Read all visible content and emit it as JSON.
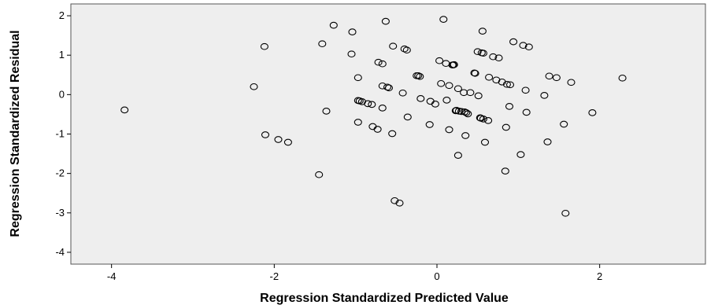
{
  "chart_data": {
    "type": "scatter",
    "title": "",
    "xlabel": "Regression Standardized Predicted Value",
    "ylabel": "Regression Standardized Residual",
    "xlim": [
      -4.5,
      3.3
    ],
    "ylim": [
      -4.3,
      2.3
    ],
    "xticks": [
      -4,
      -2,
      0,
      2
    ],
    "yticks": [
      -4,
      -3,
      -2,
      -1,
      0,
      1,
      2
    ],
    "grid": false,
    "marker": "open-circle",
    "colors": {
      "plot_background": "#eeeeee",
      "marker_stroke": "#000000"
    },
    "points": [
      [
        -3.84,
        -0.39
      ],
      [
        -2.25,
        0.2
      ],
      [
        -2.12,
        1.22
      ],
      [
        -2.11,
        -1.02
      ],
      [
        -1.95,
        -1.14
      ],
      [
        -1.83,
        -1.21
      ],
      [
        -1.45,
        -2.03
      ],
      [
        -1.41,
        1.29
      ],
      [
        -1.36,
        -0.42
      ],
      [
        -1.27,
        1.76
      ],
      [
        -1.05,
        1.03
      ],
      [
        -1.04,
        1.59
      ],
      [
        -0.97,
        0.43
      ],
      [
        -0.97,
        -0.7
      ],
      [
        -0.97,
        -0.15
      ],
      [
        -0.95,
        -0.16
      ],
      [
        -0.92,
        -0.18
      ],
      [
        -0.85,
        -0.23
      ],
      [
        -0.8,
        -0.25
      ],
      [
        -0.79,
        -0.81
      ],
      [
        -0.73,
        -0.88
      ],
      [
        -0.72,
        0.82
      ],
      [
        -0.67,
        0.78
      ],
      [
        -0.67,
        0.22
      ],
      [
        -0.67,
        -0.34
      ],
      [
        -0.63,
        1.86
      ],
      [
        -0.61,
        0.19
      ],
      [
        -0.59,
        0.17
      ],
      [
        -0.55,
        -0.99
      ],
      [
        -0.54,
        1.23
      ],
      [
        -0.52,
        -2.69
      ],
      [
        -0.46,
        -2.75
      ],
      [
        -0.42,
        0.04
      ],
      [
        -0.4,
        1.16
      ],
      [
        -0.37,
        1.13
      ],
      [
        -0.36,
        -0.57
      ],
      [
        -0.25,
        0.48
      ],
      [
        -0.23,
        0.48
      ],
      [
        -0.21,
        0.46
      ],
      [
        -0.2,
        -0.1
      ],
      [
        -0.09,
        -0.76
      ],
      [
        -0.08,
        -0.17
      ],
      [
        -0.02,
        -0.24
      ],
      [
        0.03,
        0.86
      ],
      [
        0.05,
        0.28
      ],
      [
        0.08,
        1.91
      ],
      [
        0.11,
        0.79
      ],
      [
        0.12,
        -0.14
      ],
      [
        0.15,
        -0.89
      ],
      [
        0.15,
        0.23
      ],
      [
        0.19,
        0.75
      ],
      [
        0.2,
        0.75
      ],
      [
        0.21,
        0.76
      ],
      [
        0.23,
        -0.41
      ],
      [
        0.24,
        -0.4
      ],
      [
        0.26,
        0.15
      ],
      [
        0.26,
        -1.54
      ],
      [
        0.27,
        -0.42
      ],
      [
        0.3,
        -0.43
      ],
      [
        0.33,
        0.05
      ],
      [
        0.34,
        -0.44
      ],
      [
        0.35,
        -1.04
      ],
      [
        0.36,
        -0.46
      ],
      [
        0.38,
        -0.49
      ],
      [
        0.41,
        0.05
      ],
      [
        0.46,
        0.55
      ],
      [
        0.47,
        0.54
      ],
      [
        0.5,
        1.09
      ],
      [
        0.51,
        -0.03
      ],
      [
        0.53,
        -0.59
      ],
      [
        0.54,
        -0.6
      ],
      [
        0.55,
        1.06
      ],
      [
        0.56,
        1.61
      ],
      [
        0.57,
        1.05
      ],
      [
        0.57,
        -0.62
      ],
      [
        0.59,
        -1.21
      ],
      [
        0.63,
        -0.66
      ],
      [
        0.64,
        0.44
      ],
      [
        0.69,
        0.96
      ],
      [
        0.73,
        0.37
      ],
      [
        0.76,
        0.93
      ],
      [
        0.8,
        0.32
      ],
      [
        0.84,
        -1.94
      ],
      [
        0.85,
        -0.83
      ],
      [
        0.86,
        0.26
      ],
      [
        0.89,
        -0.3
      ],
      [
        0.9,
        0.25
      ],
      [
        0.94,
        1.34
      ],
      [
        1.03,
        -1.52
      ],
      [
        1.06,
        1.25
      ],
      [
        1.09,
        0.11
      ],
      [
        1.1,
        -0.45
      ],
      [
        1.13,
        1.21
      ],
      [
        1.32,
        -0.02
      ],
      [
        1.36,
        -1.2
      ],
      [
        1.38,
        0.47
      ],
      [
        1.47,
        0.43
      ],
      [
        1.56,
        -0.75
      ],
      [
        1.58,
        -3.01
      ],
      [
        1.65,
        0.31
      ],
      [
        1.91,
        -0.46
      ],
      [
        2.28,
        0.42
      ]
    ]
  }
}
